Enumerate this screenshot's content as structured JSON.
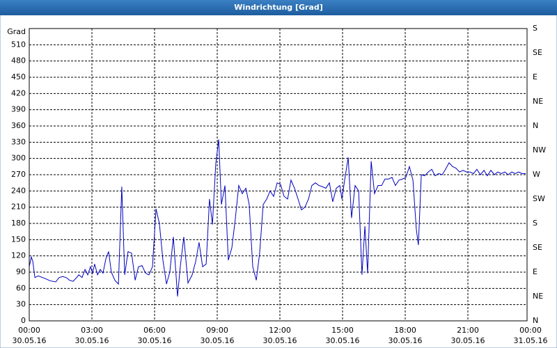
{
  "window_title": "Windrichtung [Grad]",
  "chart_data": {
    "type": "line",
    "ylabel": "Grad",
    "x": [
      0,
      0.1,
      0.17,
      0.27,
      0.43,
      0.77,
      1,
      1.27,
      1.43,
      1.6,
      1.77,
      1.93,
      2.1,
      2.27,
      2.37,
      2.53,
      2.67,
      2.8,
      2.93,
      3.03,
      3.13,
      3.27,
      3.4,
      3.53,
      3.67,
      3.8,
      3.93,
      4.1,
      4.27,
      4.43,
      4.57,
      4.73,
      4.9,
      5.07,
      5.23,
      5.4,
      5.57,
      5.73,
      5.9,
      6.07,
      6.23,
      6.4,
      6.57,
      6.73,
      6.9,
      7.1,
      7.23,
      7.4,
      7.6,
      7.8,
      7.97,
      8.13,
      8.3,
      8.47,
      8.63,
      8.77,
      8.93,
      9.07,
      9.2,
      9.37,
      9.53,
      9.7,
      9.87,
      10.03,
      10.2,
      10.37,
      10.53,
      10.7,
      10.87,
      11.03,
      11.2,
      11.37,
      11.53,
      11.7,
      11.87,
      12.03,
      12.2,
      12.37,
      12.53,
      12.7,
      12.87,
      13.03,
      13.2,
      13.37,
      13.53,
      13.7,
      13.87,
      14.03,
      14.2,
      14.37,
      14.53,
      14.7,
      14.87,
      14.97,
      15.1,
      15.27,
      15.43,
      15.6,
      15.77,
      15.93,
      16.07,
      16.2,
      16.37,
      16.53,
      16.7,
      16.87,
      17.03,
      17.2,
      17.37,
      17.53,
      17.7,
      17.87,
      18.03,
      18.2,
      18.37,
      18.53,
      18.63,
      18.77,
      18.93,
      19.1,
      19.27,
      19.43,
      19.6,
      19.77,
      19.93,
      20.1,
      20.27,
      20.43,
      20.6,
      20.77,
      20.93,
      21.1,
      21.27,
      21.43,
      21.6,
      21.77,
      21.93,
      22.1,
      22.27,
      22.43,
      22.6,
      22.77,
      22.93,
      23.1,
      23.27,
      23.43,
      23.6,
      23.77
    ],
    "series": [
      {
        "name": "Windrichtung",
        "color": "#0000c0",
        "values": [
          100,
          118,
          110,
          80,
          83,
          78,
          74,
          72,
          80,
          82,
          80,
          75,
          73,
          80,
          85,
          80,
          95,
          85,
          100,
          88,
          105,
          85,
          95,
          88,
          115,
          128,
          90,
          75,
          68,
          248,
          85,
          128,
          125,
          75,
          100,
          102,
          88,
          85,
          100,
          207,
          180,
          112,
          68,
          90,
          155,
          45,
          100,
          155,
          70,
          85,
          110,
          145,
          100,
          105,
          225,
          178,
          290,
          335,
          215,
          250,
          112,
          135,
          190,
          250,
          235,
          245,
          215,
          100,
          75,
          125,
          215,
          225,
          240,
          230,
          255,
          252,
          230,
          225,
          260,
          245,
          225,
          205,
          210,
          225,
          250,
          255,
          250,
          248,
          245,
          255,
          220,
          245,
          250,
          225,
          260,
          302,
          190,
          250,
          240,
          85,
          175,
          88,
          295,
          235,
          250,
          250,
          262,
          262,
          265,
          250,
          260,
          262,
          265,
          285,
          260,
          170,
          140,
          270,
          268,
          275,
          280,
          268,
          272,
          270,
          280,
          292,
          285,
          282,
          275,
          278,
          275,
          275,
          272,
          280,
          270,
          278,
          268,
          278,
          270,
          275,
          272,
          275,
          270,
          275,
          272,
          275,
          272,
          272
        ]
      }
    ],
    "xlim": [
      0,
      24
    ],
    "xticks": [
      {
        "value": 0,
        "label": "00:00"
      },
      {
        "value": 3,
        "label": "03:00"
      },
      {
        "value": 6,
        "label": "06:00"
      },
      {
        "value": 9,
        "label": "09:00"
      },
      {
        "value": 12,
        "label": "12:00"
      },
      {
        "value": 15,
        "label": "15:00"
      },
      {
        "value": 18,
        "label": "18:00"
      },
      {
        "value": 21,
        "label": "21:00"
      },
      {
        "value": 24,
        "label": "00:00"
      }
    ],
    "xtick_dates": [
      "30.05.16",
      "30.05.16",
      "30.05.16",
      "30.05.16",
      "30.05.16",
      "30.05.16",
      "30.05.16",
      "30.05.16",
      "31.05.16"
    ],
    "ylim": [
      0,
      540
    ],
    "yticks": [
      0,
      30,
      60,
      90,
      120,
      150,
      180,
      210,
      240,
      270,
      300,
      330,
      360,
      390,
      420,
      450,
      480,
      510
    ],
    "y2lim": [
      0,
      540
    ],
    "y2ticks": [
      {
        "value": 0,
        "label": "N"
      },
      {
        "value": 45,
        "label": "NE"
      },
      {
        "value": 90,
        "label": "E"
      },
      {
        "value": 135,
        "label": "SE"
      },
      {
        "value": 180,
        "label": "S"
      },
      {
        "value": 225,
        "label": "SW"
      },
      {
        "value": 270,
        "label": "W"
      },
      {
        "value": 315,
        "label": "NW"
      },
      {
        "value": 360,
        "label": "N"
      },
      {
        "value": 405,
        "label": "NE"
      },
      {
        "value": 450,
        "label": "E"
      },
      {
        "value": 495,
        "label": "SE"
      },
      {
        "value": 540,
        "label": "S"
      }
    ],
    "grid": true
  }
}
